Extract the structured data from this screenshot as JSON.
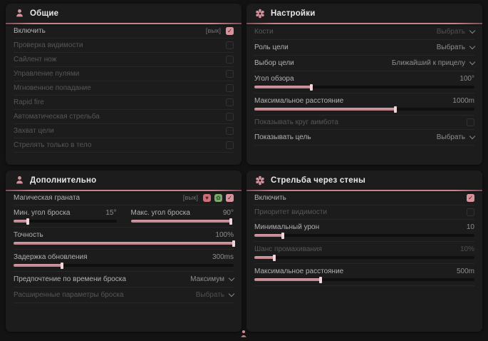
{
  "colors": {
    "accent": "#d4929c",
    "panel_bg": "#1c1c1c",
    "page_bg": "#131313",
    "divider": "#c9838d"
  },
  "panels": [
    {
      "title": "Общие",
      "icon": "person-icon",
      "rows": [
        {
          "type": "checkbox",
          "label": "Включить",
          "hotkey": "[вык]",
          "checked": true,
          "dim": false
        },
        {
          "type": "checkbox",
          "label": "Проверка видимости",
          "checked": false,
          "dim": true
        },
        {
          "type": "checkbox",
          "label": "Сайлент нож",
          "checked": false,
          "dim": true
        },
        {
          "type": "checkbox",
          "label": "Управление пулями",
          "checked": false,
          "dim": true
        },
        {
          "type": "checkbox",
          "label": "Мгновенное попадание",
          "checked": false,
          "dim": true
        },
        {
          "type": "checkbox",
          "label": "Rapid fire",
          "checked": false,
          "dim": true
        },
        {
          "type": "checkbox",
          "label": "Автоматическая стрельба",
          "checked": false,
          "dim": true
        },
        {
          "type": "checkbox",
          "label": "Захват цели",
          "checked": false,
          "dim": true
        },
        {
          "type": "checkbox",
          "label": "Стрелять только в тело",
          "checked": false,
          "dim": true
        }
      ]
    },
    {
      "title": "Настройки",
      "icon": "gear-icon",
      "rows": [
        {
          "type": "select",
          "label": "Кости",
          "value": "Выбрать",
          "dim": true
        },
        {
          "type": "select",
          "label": "Роль цели",
          "value": "Выбрать",
          "dim": false
        },
        {
          "type": "select",
          "label": "Выбор цели",
          "value": "Ближайший к прицелу",
          "dim": false
        },
        {
          "type": "slider",
          "label": "Угол обзора",
          "value": "100°",
          "fill": "26%",
          "dim": false
        },
        {
          "type": "slider",
          "label": "Максимальное расстояние",
          "value": "1000m",
          "fill": "64%",
          "dim": false
        },
        {
          "type": "checkbox",
          "label": "Показывать круг аимбота",
          "checked": false,
          "dim": true
        },
        {
          "type": "select",
          "label": "Показывать цель",
          "value": "Выбрать",
          "dim": false
        }
      ]
    },
    {
      "title": "Дополнительно",
      "icon": "person-icon",
      "rows": [
        {
          "type": "checkbox",
          "label": "Магическая граната",
          "hotkey": "[вык]",
          "checked": true,
          "dim": false,
          "icons": [
            "heart-icon",
            "leaf-icon"
          ],
          "icon_glyphs": {
            "heart": "♥",
            "leaf": "✿"
          }
        },
        {
          "type": "slider_pair",
          "left": {
            "label": "Мин. угол броска",
            "value": "15°",
            "fill": "14%"
          },
          "right": {
            "label": "Макс. угол броска",
            "value": "90°",
            "fill": "97%"
          }
        },
        {
          "type": "slider",
          "label": "Точность",
          "value": "100%",
          "fill": "100%",
          "dim": false
        },
        {
          "type": "slider",
          "label": "Задержка обновления",
          "value": "300ms",
          "fill": "22%",
          "dim": false
        },
        {
          "type": "select",
          "label": "Предпочтение по времени броска",
          "value": "Максимум",
          "dim": false
        },
        {
          "type": "select",
          "label": "Расширенные параметры броска",
          "value": "Выбрать",
          "dim": true
        }
      ]
    },
    {
      "title": "Стрельба через стены",
      "icon": "gear-icon",
      "rows": [
        {
          "type": "checkbox",
          "label": "Включить",
          "checked": true,
          "dim": false
        },
        {
          "type": "checkbox",
          "label": "Приоритет видимости",
          "checked": false,
          "dim": true
        },
        {
          "type": "slider",
          "label": "Минимальный урон",
          "value": "10",
          "fill": "13%",
          "dim": false
        },
        {
          "type": "slider",
          "label": "Шанс промахивания",
          "value": "10%",
          "fill": "9%",
          "dim": true
        },
        {
          "type": "slider",
          "label": "Максимальное расстояние",
          "value": "500m",
          "fill": "30%",
          "dim": false
        }
      ]
    }
  ]
}
